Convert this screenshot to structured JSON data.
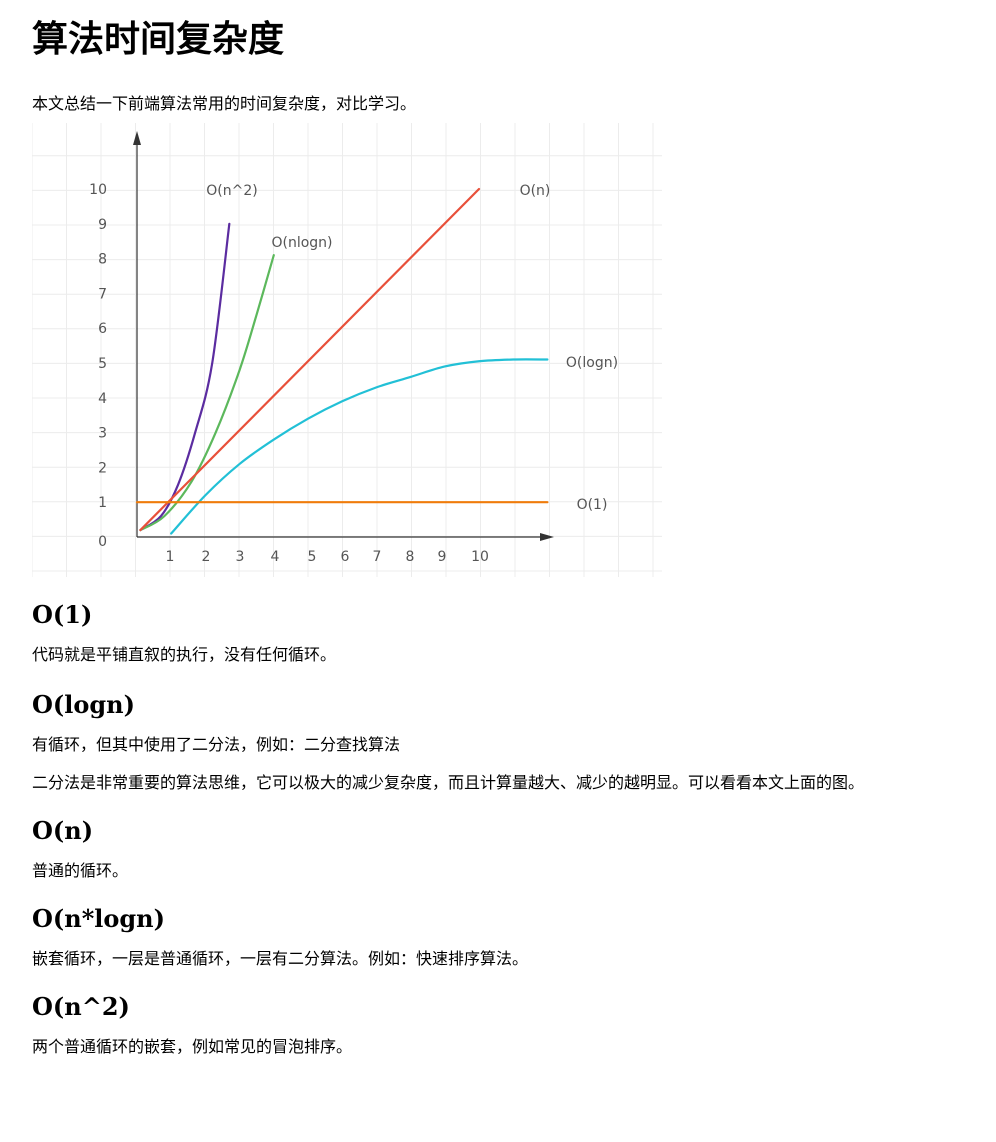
{
  "title": "算法时间复杂度",
  "intro": "本文总结一下前端算法常用的时间复杂度，对比学习。",
  "chart_data": {
    "type": "line",
    "title": "",
    "xlabel": "",
    "ylabel": "",
    "xlim": [
      0,
      12
    ],
    "ylim": [
      0,
      11
    ],
    "x_ticks": [
      "1",
      "2",
      "3",
      "4",
      "5",
      "6",
      "7",
      "8",
      "9",
      "10"
    ],
    "y_ticks": [
      "0",
      "1",
      "2",
      "3",
      "4",
      "5",
      "6",
      "7",
      "8",
      "9",
      "10"
    ],
    "grid": true,
    "series": [
      {
        "name": "O(n^2)",
        "color": "#5b2ca0",
        "points": [
          [
            0.1,
            0.2
          ],
          [
            0.7,
            0.6
          ],
          [
            1.2,
            1.5
          ],
          [
            1.7,
            3.0
          ],
          [
            2.2,
            5.0
          ],
          [
            2.7,
            9.0
          ]
        ]
      },
      {
        "name": "O(nlogn)",
        "color": "#5cb85c",
        "points": [
          [
            0.1,
            0.2
          ],
          [
            0.8,
            0.6
          ],
          [
            1.6,
            1.6
          ],
          [
            2.3,
            3.0
          ],
          [
            3.0,
            4.8
          ],
          [
            3.5,
            6.4
          ],
          [
            4.0,
            8.1
          ]
        ]
      },
      {
        "name": "O(n)",
        "color": "#e8503a",
        "points": [
          [
            0.1,
            0.2
          ],
          [
            10,
            10
          ]
        ]
      },
      {
        "name": "O(logn)",
        "color": "#22c0d6",
        "points": [
          [
            1.0,
            0.1
          ],
          [
            2.0,
            1.2
          ],
          [
            3.0,
            2.1
          ],
          [
            4.0,
            2.8
          ],
          [
            5.0,
            3.4
          ],
          [
            6.0,
            3.9
          ],
          [
            7.0,
            4.3
          ],
          [
            8.0,
            4.6
          ],
          [
            9.0,
            4.9
          ],
          [
            10.0,
            5.05
          ],
          [
            11.0,
            5.1
          ],
          [
            12.0,
            5.1
          ]
        ]
      },
      {
        "name": "O(1)",
        "color": "#f07c0b",
        "points": [
          [
            0.0,
            1.0
          ],
          [
            12.0,
            1.0
          ]
        ]
      }
    ]
  },
  "sections": [
    {
      "heading": "O(1)",
      "paragraphs": [
        "代码就是平铺直叙的执行，没有任何循环。"
      ]
    },
    {
      "heading": "O(logn)",
      "paragraphs": [
        "有循环，但其中使用了二分法，例如：二分查找算法",
        "二分法是非常重要的算法思维，它可以极大的减少复杂度，而且计算量越大、减少的越明显。可以看看本文上面的图。"
      ]
    },
    {
      "heading": "O(n)",
      "paragraphs": [
        "普通的循环。"
      ]
    },
    {
      "heading": "O(n*logn)",
      "paragraphs": [
        "嵌套循环，一层是普通循环，一层有二分算法。例如：快速排序算法。"
      ]
    },
    {
      "heading": "O(n^2)",
      "paragraphs": [
        "两个普通循环的嵌套，例如常见的冒泡排序。"
      ]
    }
  ]
}
